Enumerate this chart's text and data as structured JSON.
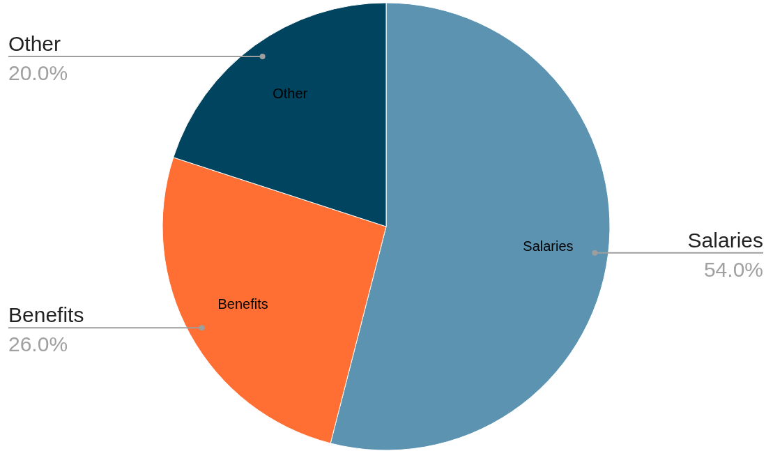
{
  "chart_data": {
    "type": "pie",
    "categories": [
      "Salaries",
      "Benefits",
      "Other"
    ],
    "values": [
      54,
      26,
      20
    ],
    "colors": [
      "#5b93b0",
      "#ff6f33",
      "#00445f"
    ],
    "value_labels": [
      "54.0%",
      "26.0%",
      "20.0%"
    ]
  }
}
